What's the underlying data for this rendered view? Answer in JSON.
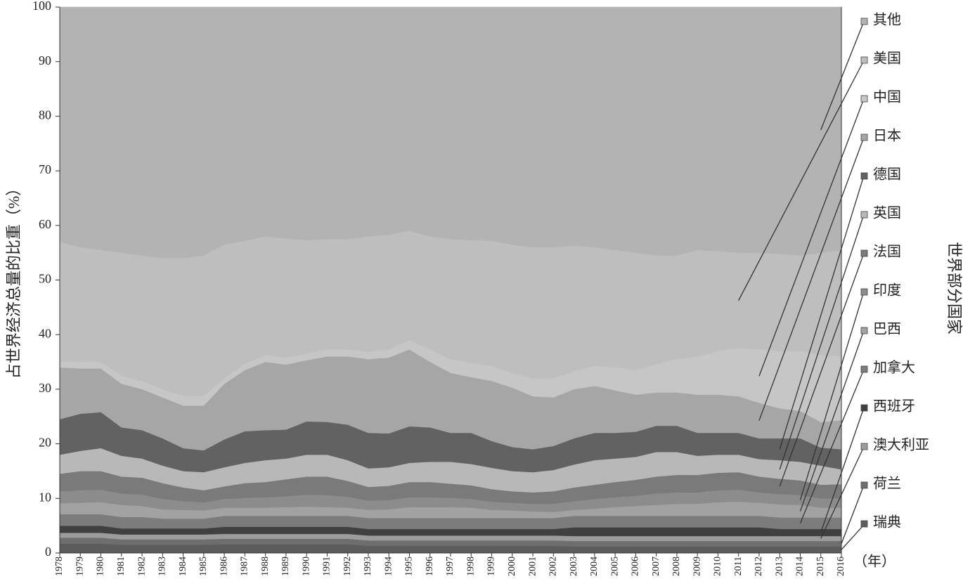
{
  "chart_data": {
    "type": "area",
    "stacked": true,
    "y_label": "占世界经济总量的比重（%）",
    "x_unit_label": "（年）",
    "legend_title": "世界部分国家",
    "x": [
      1978,
      1979,
      1980,
      1981,
      1982,
      1983,
      1984,
      1985,
      1986,
      1987,
      1988,
      1989,
      1990,
      1991,
      1992,
      1993,
      1994,
      1995,
      1996,
      1997,
      1998,
      1999,
      2000,
      2001,
      2002,
      2003,
      2004,
      2005,
      2006,
      2007,
      2008,
      2009,
      2010,
      2011,
      2012,
      2013,
      2014,
      2015,
      2016
    ],
    "xlim": [
      1978,
      2016
    ],
    "ylim": [
      0,
      100
    ],
    "yticks": [
      0,
      10,
      20,
      30,
      40,
      50,
      60,
      70,
      80,
      90,
      100
    ],
    "series": [
      {
        "name": "瑞典",
        "color": "#5c5c5c",
        "values": [
          1.7,
          1.7,
          1.7,
          1.5,
          1.5,
          1.5,
          1.5,
          1.5,
          1.6,
          1.6,
          1.6,
          1.6,
          1.6,
          1.6,
          1.6,
          1.3,
          1.3,
          1.3,
          1.3,
          1.3,
          1.3,
          1.3,
          1.3,
          1.3,
          1.3,
          1.2,
          1.2,
          1.2,
          1.2,
          1.2,
          1.2,
          1.2,
          1.2,
          1.2,
          1.2,
          1.2,
          1.2,
          1.2,
          1.2
        ]
      },
      {
        "name": "荷兰",
        "color": "#6e6e6e",
        "values": [
          1.1,
          1.1,
          1.1,
          1.0,
          1.0,
          1.0,
          1.0,
          1.0,
          1.0,
          1.0,
          1.0,
          1.0,
          1.0,
          1.0,
          1.0,
          1.0,
          1.0,
          1.0,
          1.0,
          1.0,
          1.0,
          1.0,
          1.0,
          1.0,
          1.0,
          1.0,
          1.0,
          1.0,
          1.0,
          1.0,
          1.0,
          1.0,
          1.0,
          1.0,
          1.0,
          1.0,
          1.0,
          1.0,
          1.0
        ]
      },
      {
        "name": "澳大利亚",
        "color": "#9c9c9c",
        "values": [
          0.9,
          0.9,
          0.9,
          0.9,
          0.9,
          0.9,
          0.9,
          0.9,
          0.9,
          0.9,
          0.9,
          0.9,
          0.9,
          0.9,
          0.9,
          0.9,
          0.9,
          0.9,
          0.9,
          0.9,
          0.9,
          0.9,
          0.9,
          0.9,
          0.9,
          0.9,
          0.9,
          0.9,
          0.9,
          0.9,
          0.9,
          0.9,
          0.9,
          0.9,
          0.9,
          0.9,
          0.9,
          0.9,
          0.9
        ]
      },
      {
        "name": "西班牙",
        "color": "#404040",
        "values": [
          1.3,
          1.3,
          1.3,
          1.1,
          1.1,
          1.1,
          1.1,
          1.1,
          1.3,
          1.3,
          1.3,
          1.3,
          1.3,
          1.3,
          1.3,
          1.2,
          1.2,
          1.2,
          1.2,
          1.2,
          1.2,
          1.2,
          1.2,
          1.2,
          1.2,
          1.6,
          1.6,
          1.6,
          1.6,
          1.6,
          1.6,
          1.6,
          1.6,
          1.6,
          1.6,
          1.3,
          1.3,
          1.3,
          1.3
        ]
      },
      {
        "name": "加拿大",
        "color": "#7c7c7c",
        "values": [
          2.1,
          2.1,
          2.1,
          2.1,
          2.1,
          1.8,
          1.8,
          1.8,
          2.0,
          2.0,
          2.0,
          2.0,
          2.0,
          2.0,
          2.0,
          2.0,
          2.0,
          2.0,
          2.0,
          2.0,
          2.0,
          2.0,
          2.0,
          2.0,
          2.0,
          2.1,
          2.1,
          2.1,
          2.1,
          2.1,
          2.1,
          2.1,
          2.1,
          2.1,
          2.1,
          2.1,
          2.1,
          2.1,
          2.1
        ]
      },
      {
        "name": "巴西",
        "color": "#a2a2a2",
        "values": [
          2.0,
          2.1,
          2.2,
          2.2,
          2.0,
          1.7,
          1.6,
          1.5,
          1.5,
          1.5,
          1.5,
          1.6,
          1.7,
          1.6,
          1.5,
          1.5,
          1.6,
          2.0,
          2.0,
          2.0,
          1.9,
          1.5,
          1.4,
          1.2,
          1.1,
          1.1,
          1.3,
          1.6,
          1.8,
          2.0,
          2.2,
          2.2,
          2.5,
          2.6,
          2.4,
          2.4,
          2.3,
          1.8,
          1.8
        ]
      },
      {
        "name": "印度",
        "color": "#8c8c8c",
        "values": [
          2.2,
          2.3,
          2.3,
          2.1,
          2.1,
          1.9,
          1.6,
          1.5,
          1.6,
          1.8,
          1.9,
          2.0,
          2.2,
          2.2,
          2.0,
          1.7,
          1.7,
          1.8,
          1.8,
          1.7,
          1.6,
          1.5,
          1.4,
          1.4,
          1.5,
          1.6,
          1.8,
          1.8,
          1.9,
          2.1,
          2.1,
          2.1,
          2.2,
          2.2,
          1.9,
          1.9,
          1.8,
          1.7,
          1.7
        ]
      },
      {
        "name": "法国",
        "color": "#7a7a7a",
        "values": [
          3.2,
          3.5,
          3.4,
          3.1,
          3.1,
          2.9,
          2.5,
          2.2,
          2.3,
          2.7,
          2.8,
          3.1,
          3.3,
          3.4,
          2.9,
          2.5,
          2.6,
          2.8,
          2.8,
          2.6,
          2.5,
          2.3,
          2.1,
          2.1,
          2.3,
          2.5,
          2.6,
          2.8,
          2.9,
          3.1,
          3.2,
          3.2,
          3.2,
          3.2,
          2.9,
          2.8,
          2.7,
          2.5,
          2.6
        ]
      },
      {
        "name": "英国",
        "color": "#b8b8b8",
        "values": [
          3.5,
          3.7,
          4.2,
          3.8,
          3.5,
          3.2,
          3.0,
          3.3,
          3.5,
          3.7,
          4.0,
          3.8,
          4.0,
          4.0,
          3.8,
          3.4,
          3.4,
          3.5,
          3.7,
          4.0,
          3.9,
          3.9,
          3.7,
          3.7,
          3.9,
          4.2,
          4.5,
          4.3,
          4.2,
          4.5,
          4.2,
          3.5,
          3.3,
          3.2,
          3.2,
          3.4,
          3.4,
          3.5,
          2.7
        ]
      },
      {
        "name": "德国",
        "color": "#626262",
        "values": [
          6.5,
          6.8,
          6.6,
          5.2,
          5.2,
          5.0,
          4.2,
          4.0,
          5.1,
          5.8,
          5.5,
          5.3,
          6.1,
          6.0,
          6.5,
          6.5,
          6.2,
          6.7,
          6.3,
          5.3,
          5.7,
          4.9,
          4.4,
          4.2,
          4.4,
          4.8,
          5.0,
          4.7,
          4.6,
          4.8,
          4.8,
          4.2,
          4.0,
          4.0,
          3.8,
          4.0,
          4.3,
          3.3,
          3.7
        ]
      },
      {
        "name": "日本",
        "color": "#a6a6a6",
        "values": [
          9.5,
          8.3,
          8.0,
          8.0,
          7.5,
          7.5,
          7.8,
          8.2,
          10.2,
          11.2,
          12.5,
          11.9,
          11.2,
          12.0,
          12.5,
          13.5,
          13.9,
          14.1,
          12.0,
          11.0,
          10.2,
          11.0,
          10.9,
          9.7,
          8.9,
          9.0,
          8.6,
          7.8,
          6.8,
          6.1,
          6.1,
          7.0,
          7.0,
          6.7,
          6.5,
          5.5,
          5.0,
          4.7,
          5.3
        ]
      },
      {
        "name": "中国",
        "color": "#c6c6c6",
        "values": [
          1.0,
          1.2,
          1.2,
          1.5,
          1.5,
          1.5,
          1.8,
          1.8,
          1.0,
          1.2,
          1.3,
          1.3,
          1.2,
          1.3,
          1.3,
          1.3,
          1.5,
          1.7,
          2.3,
          2.5,
          2.6,
          2.8,
          2.7,
          3.3,
          3.5,
          3.3,
          3.7,
          4.2,
          4.5,
          5.2,
          6.1,
          7.0,
          8.0,
          8.8,
          9.8,
          10.5,
          11.0,
          12.2,
          11.7
        ]
      },
      {
        "name": "美国",
        "color": "#bebebe",
        "values": [
          22.0,
          21.0,
          20.5,
          22.5,
          23.0,
          24.0,
          25.2,
          25.7,
          24.5,
          22.5,
          21.7,
          21.8,
          20.8,
          20.2,
          20.2,
          21.2,
          21.0,
          20.0,
          20.7,
          22.0,
          22.5,
          22.9,
          23.5,
          24.0,
          24.0,
          23.0,
          21.7,
          21.5,
          21.5,
          19.9,
          19.0,
          19.5,
          18.3,
          17.5,
          17.7,
          17.8,
          17.5,
          18.8,
          19.5
        ]
      },
      {
        "name": "其他",
        "color": "#b3b3b3",
        "values": [
          43.0,
          44.0,
          44.5,
          45.0,
          45.5,
          46.0,
          46.0,
          45.5,
          43.5,
          42.8,
          42.0,
          42.4,
          42.7,
          42.5,
          42.5,
          42.0,
          41.7,
          41.0,
          42.0,
          42.5,
          42.7,
          42.8,
          43.5,
          44.0,
          44.0,
          43.7,
          44.0,
          44.5,
          45.0,
          45.5,
          45.5,
          44.5,
          44.7,
          45.0,
          45.0,
          45.2,
          45.5,
          45.0,
          44.5
        ]
      }
    ]
  }
}
